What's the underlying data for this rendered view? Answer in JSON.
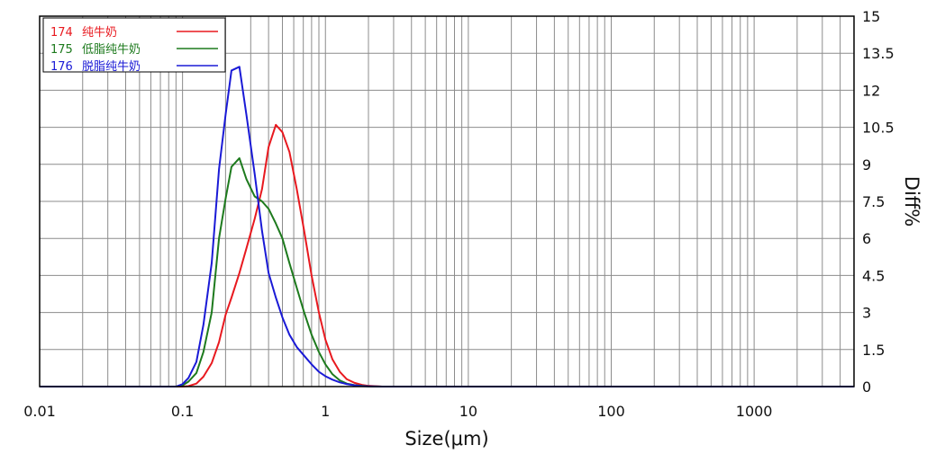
{
  "chart_data": {
    "type": "line",
    "xlabel": "Size(μm)",
    "ylabel": "Diff%",
    "x_scale": "log",
    "xlim": [
      0.01,
      5000
    ],
    "ylim": [
      0,
      15
    ],
    "x_ticks": [
      {
        "value": 0.01,
        "label": "0.01"
      },
      {
        "value": 0.1,
        "label": "0.1"
      },
      {
        "value": 1,
        "label": "1"
      },
      {
        "value": 10,
        "label": "10"
      },
      {
        "value": 100,
        "label": "100"
      },
      {
        "value": 1000,
        "label": "1000"
      }
    ],
    "y_ticks": [
      {
        "value": 0,
        "label": "0"
      },
      {
        "value": 1.5,
        "label": "1.5"
      },
      {
        "value": 3,
        "label": "3"
      },
      {
        "value": 4.5,
        "label": "4.5"
      },
      {
        "value": 6,
        "label": "6"
      },
      {
        "value": 7.5,
        "label": "7.5"
      },
      {
        "value": 9,
        "label": "9"
      },
      {
        "value": 10.5,
        "label": "10.5"
      },
      {
        "value": 12,
        "label": "12"
      },
      {
        "value": 13.5,
        "label": "13.5"
      },
      {
        "value": 15,
        "label": "15"
      }
    ],
    "y_axis_position": "right",
    "grid": true,
    "legend_position": "top-left",
    "series": [
      {
        "id": "174",
        "name": "纯牛奶",
        "color": "#e8191f",
        "points": [
          [
            0.01,
            0
          ],
          [
            0.1,
            0
          ],
          [
            0.11,
            0.02
          ],
          [
            0.125,
            0.12
          ],
          [
            0.14,
            0.4
          ],
          [
            0.16,
            0.95
          ],
          [
            0.18,
            1.8
          ],
          [
            0.2,
            2.9
          ],
          [
            0.22,
            3.6
          ],
          [
            0.25,
            4.6
          ],
          [
            0.28,
            5.6
          ],
          [
            0.32,
            6.8
          ],
          [
            0.36,
            8.0
          ],
          [
            0.4,
            9.7
          ],
          [
            0.45,
            10.6
          ],
          [
            0.5,
            10.3
          ],
          [
            0.56,
            9.5
          ],
          [
            0.63,
            8.0
          ],
          [
            0.71,
            6.3
          ],
          [
            0.8,
            4.5
          ],
          [
            0.9,
            3.0
          ],
          [
            1.0,
            1.9
          ],
          [
            1.12,
            1.1
          ],
          [
            1.26,
            0.6
          ],
          [
            1.41,
            0.3
          ],
          [
            1.6,
            0.15
          ],
          [
            1.8,
            0.07
          ],
          [
            2.0,
            0.03
          ],
          [
            2.5,
            0
          ],
          [
            5000,
            0
          ]
        ]
      },
      {
        "id": "175",
        "name": "低脂纯牛奶",
        "color": "#1d7a1d",
        "points": [
          [
            0.01,
            0
          ],
          [
            0.09,
            0
          ],
          [
            0.1,
            0.05
          ],
          [
            0.11,
            0.2
          ],
          [
            0.125,
            0.55
          ],
          [
            0.14,
            1.4
          ],
          [
            0.16,
            3.0
          ],
          [
            0.18,
            6.0
          ],
          [
            0.2,
            7.6
          ],
          [
            0.22,
            8.9
          ],
          [
            0.25,
            9.25
          ],
          [
            0.28,
            8.4
          ],
          [
            0.32,
            7.7
          ],
          [
            0.36,
            7.5
          ],
          [
            0.4,
            7.2
          ],
          [
            0.45,
            6.6
          ],
          [
            0.5,
            6.0
          ],
          [
            0.56,
            5.0
          ],
          [
            0.63,
            4.0
          ],
          [
            0.71,
            3.0
          ],
          [
            0.8,
            2.1
          ],
          [
            0.9,
            1.4
          ],
          [
            1.0,
            0.9
          ],
          [
            1.12,
            0.5
          ],
          [
            1.26,
            0.25
          ],
          [
            1.41,
            0.12
          ],
          [
            1.6,
            0.06
          ],
          [
            1.8,
            0.03
          ],
          [
            2.0,
            0.01
          ],
          [
            2.5,
            0
          ],
          [
            5000,
            0
          ]
        ]
      },
      {
        "id": "176",
        "name": "脱脂纯牛奶",
        "color": "#1a1ad6",
        "points": [
          [
            0.01,
            0
          ],
          [
            0.09,
            0
          ],
          [
            0.1,
            0.1
          ],
          [
            0.11,
            0.35
          ],
          [
            0.125,
            1.0
          ],
          [
            0.14,
            2.5
          ],
          [
            0.16,
            5.0
          ],
          [
            0.18,
            8.8
          ],
          [
            0.2,
            11.0
          ],
          [
            0.22,
            12.8
          ],
          [
            0.25,
            12.95
          ],
          [
            0.28,
            11.0
          ],
          [
            0.32,
            8.6
          ],
          [
            0.36,
            6.3
          ],
          [
            0.4,
            4.6
          ],
          [
            0.45,
            3.6
          ],
          [
            0.5,
            2.8
          ],
          [
            0.56,
            2.1
          ],
          [
            0.63,
            1.6
          ],
          [
            0.71,
            1.25
          ],
          [
            0.8,
            0.9
          ],
          [
            0.9,
            0.6
          ],
          [
            1.0,
            0.42
          ],
          [
            1.12,
            0.28
          ],
          [
            1.26,
            0.17
          ],
          [
            1.41,
            0.1
          ],
          [
            1.6,
            0.05
          ],
          [
            1.8,
            0.02
          ],
          [
            2.0,
            0.01
          ],
          [
            2.5,
            0
          ],
          [
            5000,
            0
          ]
        ]
      }
    ]
  }
}
